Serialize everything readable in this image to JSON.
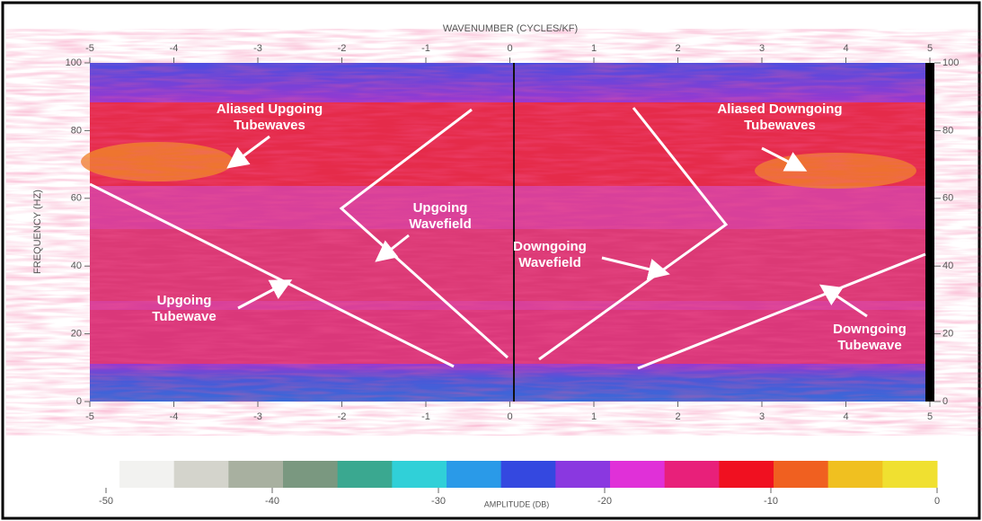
{
  "chart_data": {
    "type": "fk-spectrum",
    "x_label": "WAVENUMBER (CYCLES/KF)",
    "y_label": "FREQUENCY (HZ)",
    "xlim": [
      -5,
      5
    ],
    "xticks": [
      -5,
      -4,
      -3,
      -2,
      -1,
      0,
      1,
      2,
      3,
      4,
      5
    ],
    "ylim": [
      0,
      100
    ],
    "yticks": [
      0,
      20,
      40,
      60,
      80,
      100
    ],
    "annotations": [
      [
        "Aliased Upgoing",
        "Tubewaves"
      ],
      [
        "Upgoing",
        "Wavefield"
      ],
      [
        "Downgoing",
        "Wavefield"
      ],
      [
        "Aliased Downgoing",
        "Tubewaves"
      ],
      [
        "Upgoing",
        "Tubewave"
      ],
      [
        "Downgoing",
        "Tubewave"
      ]
    ],
    "colorbar": {
      "label": "AMPLITUDE (DB)",
      "lim": [
        -50,
        0
      ],
      "ticks": [
        -50,
        -40,
        -30,
        -20,
        -10,
        0
      ],
      "colors": [
        "#f2f2f0",
        "#d4d4cc",
        "#a8b0a0",
        "#7a9880",
        "#3aa890",
        "#30d0d8",
        "#2a9ae8",
        "#3448e0",
        "#8a38e0",
        "#e030d8",
        "#e8207a",
        "#f01020",
        "#f06020",
        "#f0c020",
        "#f0e030"
      ]
    }
  }
}
